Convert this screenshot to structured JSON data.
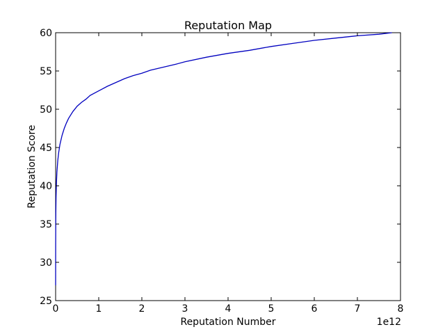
{
  "chart_data": {
    "type": "line",
    "title": "Reputation Map",
    "xlabel": "Reputation Number",
    "ylabel": "Reputation Score",
    "x_offset_label": "1e12",
    "xlim": [
      0,
      8
    ],
    "ylim": [
      25,
      60
    ],
    "x_ticks": [
      "0",
      "1",
      "2",
      "3",
      "4",
      "5",
      "6",
      "7",
      "8"
    ],
    "y_ticks": [
      "25",
      "30",
      "35",
      "40",
      "45",
      "50",
      "55",
      "60"
    ],
    "grid": false,
    "legend": "none",
    "color": "#0000bf",
    "series": [
      {
        "x": [
          0.0,
          0.001,
          0.003,
          0.005,
          0.01,
          0.02,
          0.03,
          0.05,
          0.07,
          0.1,
          0.15,
          0.2,
          0.25,
          0.3,
          0.4,
          0.5,
          0.6,
          0.7,
          0.8,
          1.0,
          1.2,
          1.4,
          1.6,
          1.8,
          2.0,
          2.2,
          2.5,
          2.8,
          3.0,
          3.5,
          4.0,
          4.5,
          5.0,
          5.5,
          6.0,
          6.5,
          7.0,
          7.5,
          7.8
        ],
        "y": [
          27.0,
          32.0,
          35.0,
          36.5,
          38.5,
          40.5,
          41.8,
          43.3,
          44.3,
          45.4,
          46.6,
          47.5,
          48.2,
          48.8,
          49.7,
          50.4,
          50.9,
          51.3,
          51.8,
          52.4,
          53.0,
          53.5,
          54.0,
          54.4,
          54.7,
          55.1,
          55.5,
          55.9,
          56.2,
          56.8,
          57.3,
          57.7,
          58.2,
          58.6,
          59.0,
          59.3,
          59.6,
          59.8,
          60.0
        ]
      }
    ]
  }
}
